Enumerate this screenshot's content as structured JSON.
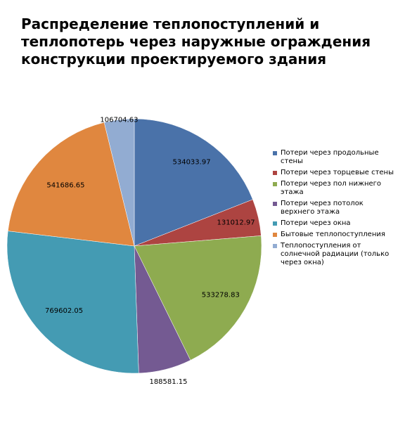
{
  "chart_data": {
    "type": "pie",
    "title": "Распределение теплопоступлений и теплопотерь через наружные ограждения конструкции проектируемого здания",
    "categories": [
      "Потери через продольные стены",
      "Потери через торцевые стены",
      "Потери через пол нижнего этажа",
      "Потери через потолок верхнего этажа",
      "Потери через окна",
      "Бытовые теплопоступления",
      "Теплопоступления от солнечной радиации (только через окна)"
    ],
    "values": [
      534033.97,
      131012.97,
      533278.83,
      188581.15,
      769602.05,
      541686.65,
      106704.63
    ],
    "colors": [
      "#4a72a9",
      "#ad4441",
      "#8eab50",
      "#745a92",
      "#449bb3",
      "#e0873f",
      "#92acd2"
    ],
    "legend": "right"
  }
}
